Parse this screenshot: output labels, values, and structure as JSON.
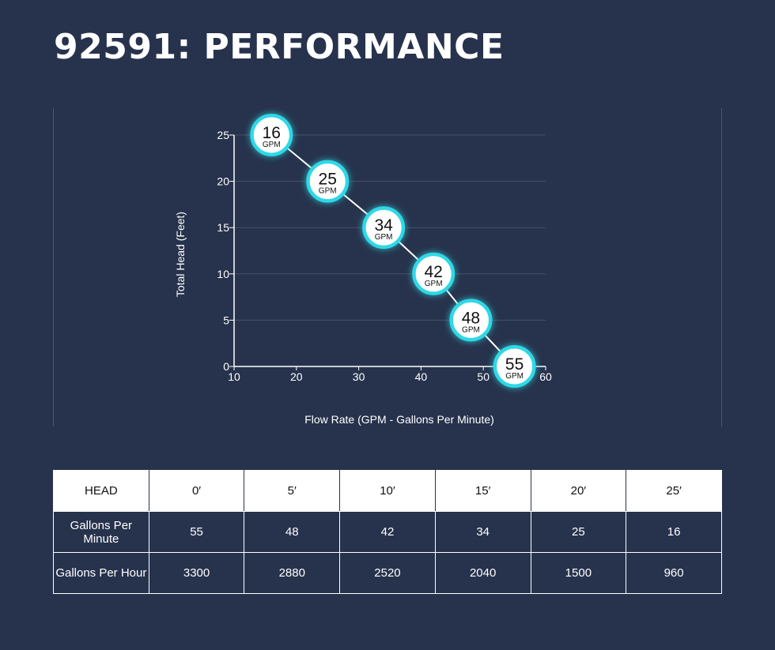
{
  "page": {
    "title": "92591: PERFORMANCE",
    "background": "#27334d"
  },
  "chart_data": {
    "type": "line",
    "xlabel": "Flow Rate (GPM - Gallons Per Minute)",
    "ylabel": "Total Head (Feet)",
    "xlim": [
      10,
      60
    ],
    "ylim": [
      0,
      25
    ],
    "x_ticks": [
      10,
      20,
      30,
      40,
      50,
      60
    ],
    "y_ticks": [
      0,
      5,
      10,
      15,
      20,
      25
    ],
    "grid": "horizontal",
    "marker_unit": "GPM",
    "marker_color": "#2fd8e6",
    "points": [
      {
        "x": 16,
        "y": 25,
        "label": "16"
      },
      {
        "x": 25,
        "y": 20,
        "label": "25"
      },
      {
        "x": 34,
        "y": 15,
        "label": "34"
      },
      {
        "x": 42,
        "y": 10,
        "label": "42"
      },
      {
        "x": 48,
        "y": 5,
        "label": "48"
      },
      {
        "x": 55,
        "y": 0,
        "label": "55"
      }
    ]
  },
  "table": {
    "headers": [
      "HEAD",
      "0′",
      "5′",
      "10′",
      "15′",
      "20′",
      "25′"
    ],
    "rows": [
      [
        "Gallons Per Minute",
        "55",
        "48",
        "42",
        "34",
        "25",
        "16"
      ],
      [
        "Gallons Per Hour",
        "3300",
        "2880",
        "2520",
        "2040",
        "1500",
        "960"
      ]
    ]
  }
}
